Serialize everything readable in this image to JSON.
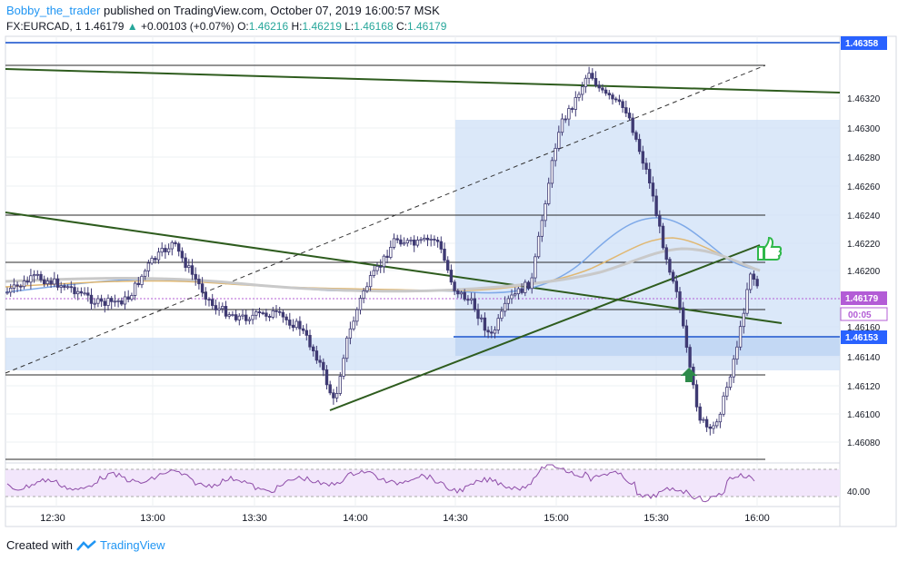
{
  "header": {
    "author": "Bobby_the_trader",
    "published_text": "published on TradingView.com, October 07, 2019 16:00:57 MSK",
    "symbol": "FX:EURCAD, 1",
    "last": "1.46179",
    "change_arrow": "▲",
    "change": "+0.00103 (+0.07%)",
    "o_label": "O:",
    "o_value": "1.46216",
    "h_label": "H:",
    "h_value": "1.46219",
    "l_label": "L:",
    "l_value": "1.46168",
    "c_label": "C:",
    "c_value": "1.46179"
  },
  "price_axis": {
    "ticks": [
      "1.46320",
      "1.46300",
      "1.46280",
      "1.46260",
      "1.46240",
      "1.46220",
      "1.46200",
      "1.46160",
      "1.46140",
      "1.46120",
      "1.46100",
      "1.46080"
    ],
    "labels": [
      {
        "text": "1.46358",
        "color": "#2962ff"
      },
      {
        "text": "1.46179",
        "color": "#b35cd6"
      },
      {
        "text": "00:05",
        "color": "#b35cd6"
      },
      {
        "text": "1.46153",
        "color": "#2962ff"
      }
    ]
  },
  "time_axis": {
    "ticks": [
      "12:30",
      "13:00",
      "13:30",
      "14:00",
      "14:30",
      "15:00",
      "15:30",
      "16:00"
    ]
  },
  "rsi": {
    "tick": "40.00"
  },
  "colors": {
    "bull": "#ffffff",
    "bear": "#3f3a73",
    "trend": "#2e5c1e",
    "zone": "#cfe0f7",
    "rsi": "#8e4ca8",
    "rsi_band": "#f2e6fb"
  },
  "footer": {
    "created_with": "Created with",
    "brand": "TradingView"
  }
}
